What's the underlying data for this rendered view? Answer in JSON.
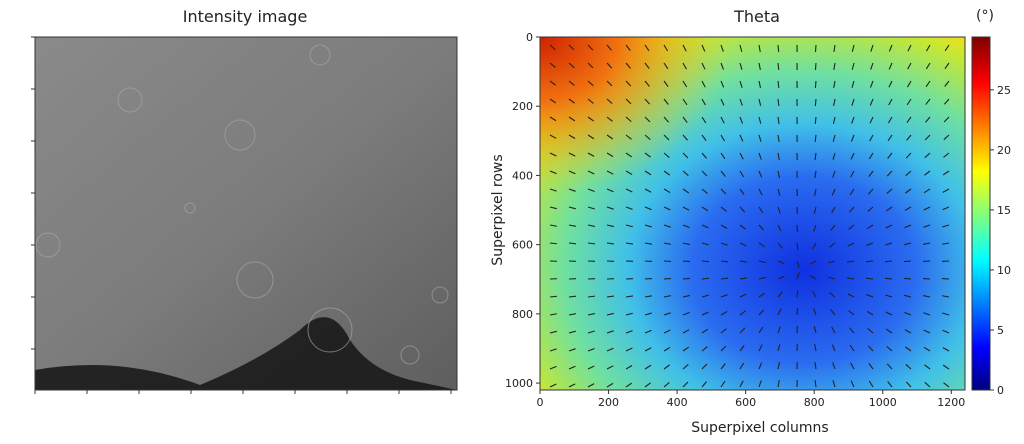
{
  "chart_data": [
    {
      "type": "image",
      "title": "Intensity image"
    },
    {
      "type": "heatmap",
      "title": "Theta",
      "xlabel": "Superpixel columns",
      "ylabel": "Superpixel rows",
      "xlim": [
        0,
        1240
      ],
      "xticks": [
        0,
        200,
        400,
        600,
        800,
        1000,
        1200
      ],
      "ylim": [
        0,
        1020
      ],
      "yticks": [
        0,
        200,
        400,
        600,
        800,
        1000
      ],
      "y_inverted": true,
      "colorbar": {
        "label": "(°)",
        "clim": [
          0,
          29.4
        ],
        "ticks": [
          0,
          5,
          10,
          15,
          20,
          25
        ],
        "colormap": "jet"
      }
    }
  ]
}
